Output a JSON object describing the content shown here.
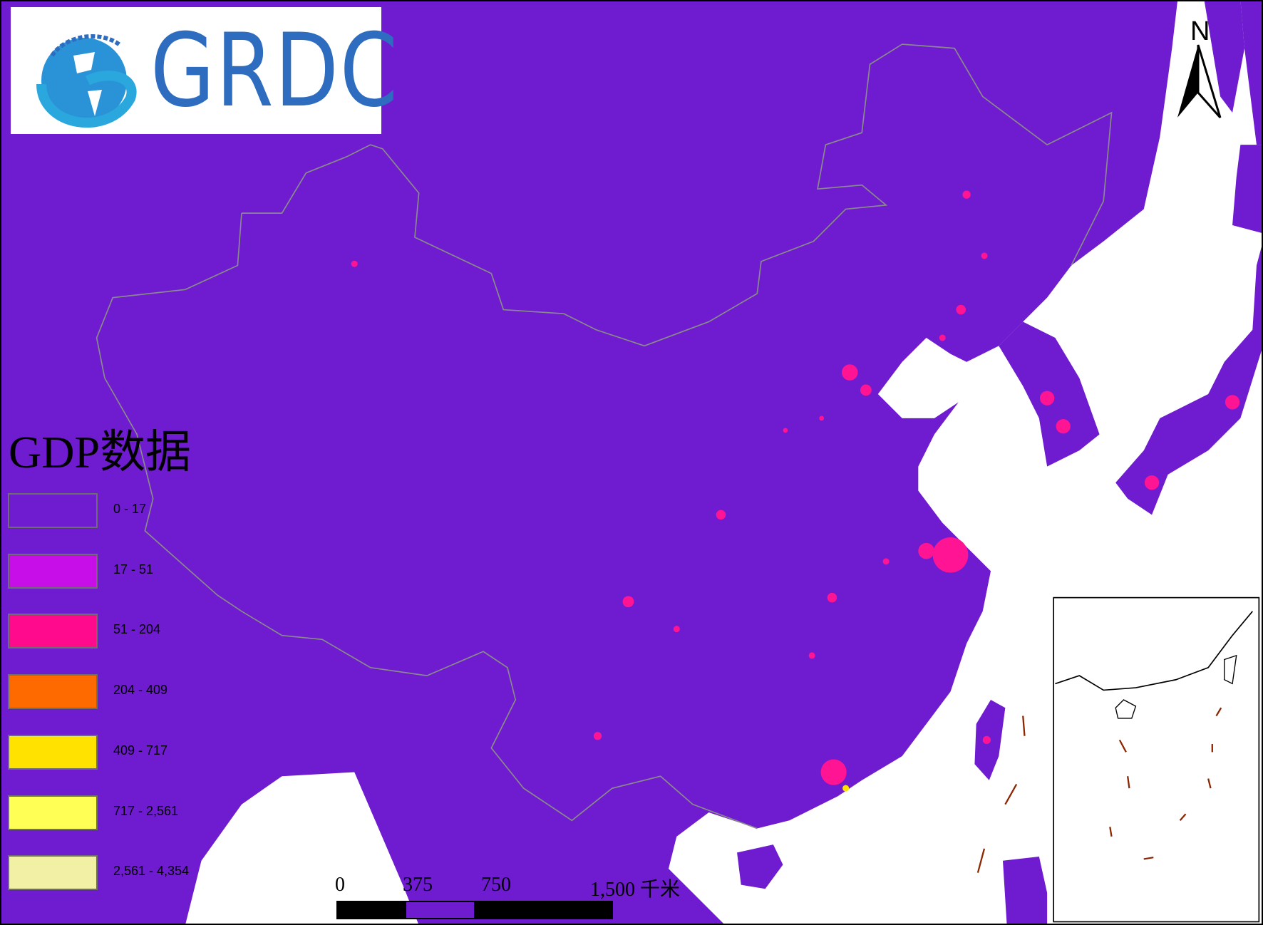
{
  "logo": {
    "text": "GRDC"
  },
  "legend": {
    "title": "GDP数据",
    "items": [
      {
        "label": "0 - 17",
        "color": "#6f1bd0"
      },
      {
        "label": "17 - 51",
        "color": "#c80ee8"
      },
      {
        "label": "51 - 204",
        "color": "#ff0a8c"
      },
      {
        "label": "204 - 409",
        "color": "#ff6a00"
      },
      {
        "label": "409 - 717",
        "color": "#ffe200"
      },
      {
        "label": "717 - 2,561",
        "color": "#ffff55"
      },
      {
        "label": "2,561 - 4,354",
        "color": "#f2f0a4"
      }
    ]
  },
  "scale_bar": {
    "labels": [
      "0",
      "375",
      "750",
      "1,500 千米"
    ]
  },
  "north_arrow": {
    "label": "N"
  },
  "colors": {
    "land": "#6f1bd0",
    "sea": "#ffffff",
    "hotspot": "#ff1493",
    "border": "#8a8a8a"
  }
}
